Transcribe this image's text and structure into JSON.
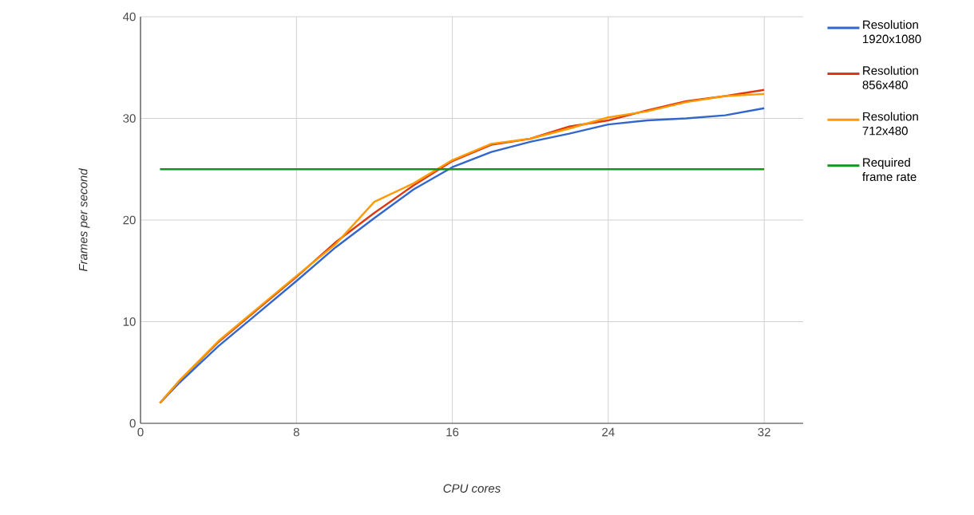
{
  "chart_data": {
    "type": "line",
    "xlabel": "CPU cores",
    "ylabel": "Frames per second",
    "x": [
      1,
      2,
      4,
      6,
      8,
      10,
      12,
      14,
      16,
      18,
      20,
      22,
      24,
      26,
      28,
      30,
      32
    ],
    "series": [
      {
        "name": "Resolution 1920x1080",
        "color": "#3366cc",
        "values": [
          2,
          4,
          7.6,
          10.8,
          14,
          17.3,
          20.2,
          23,
          25.2,
          26.7,
          27.7,
          28.5,
          29.4,
          29.8,
          30.0,
          30.3,
          31.0
        ]
      },
      {
        "name": "Resolution 856x480",
        "color": "#dc3912",
        "values": [
          2,
          4.2,
          8,
          11.2,
          14.4,
          17.8,
          20.7,
          23.4,
          25.8,
          27.4,
          28,
          29.2,
          29.8,
          30.8,
          31.7,
          32.2,
          32.8
        ]
      },
      {
        "name": "Resolution 712x480",
        "color": "#ff9900",
        "values": [
          2,
          4.2,
          8.1,
          11.3,
          14.5,
          17.6,
          21.8,
          23.6,
          25.9,
          27.5,
          28,
          29,
          30.1,
          30.7,
          31.6,
          32.2,
          32.4
        ]
      },
      {
        "name": "Required frame rate",
        "color": "#109618",
        "x": [
          1,
          32
        ],
        "values": [
          25,
          25
        ]
      }
    ],
    "xlim": [
      0,
      34
    ],
    "xticks": [
      0,
      8,
      16,
      24,
      32
    ],
    "ylim": [
      0,
      40
    ],
    "yticks": [
      0,
      10,
      20,
      30,
      40
    ],
    "grid": true,
    "legend": "top right",
    "marker": "none",
    "line_style": "solid"
  }
}
